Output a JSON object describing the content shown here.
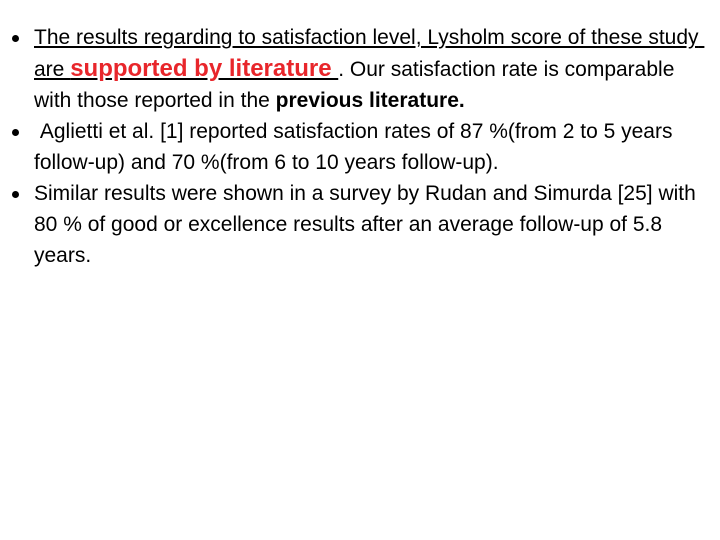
{
  "bullets": [
    {
      "runs": [
        {
          "text": "The results regarding to satisfaction level, Lysholm score of these study are ",
          "style": "underline"
        },
        {
          "text": "supported by literature ",
          "style": "emphasis"
        },
        {
          "text": ". Our satisfaction rate is comparable with those reported in the ",
          "style": "normal"
        },
        {
          "text": "previous literature.",
          "style": "bold"
        }
      ]
    },
    {
      "runs": [
        {
          "text": " Aglietti et al. [1] reported satisfaction rates of 87 %(from 2 to 5 years follow-up) and 70 %(from 6 to 10 years follow-up).",
          "style": "normal"
        }
      ]
    },
    {
      "runs": [
        {
          "text": "Similar results were shown in a survey by Rudan and Simurda [25] with 80 % of good or excellence results after an average follow-up of 5.8 years.",
          "style": "normal"
        }
      ]
    }
  ]
}
